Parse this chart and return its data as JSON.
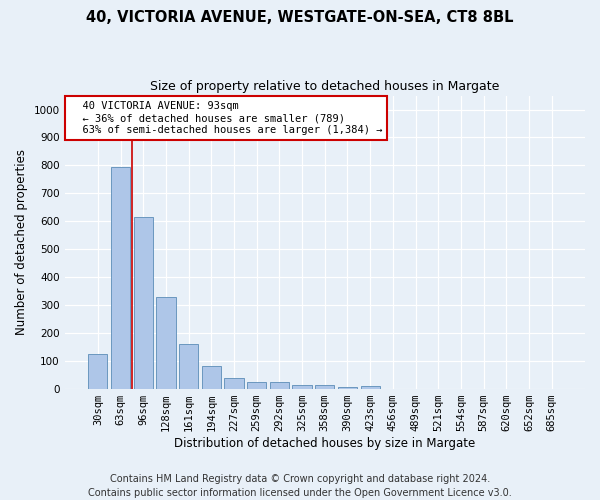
{
  "title_line1": "40, VICTORIA AVENUE, WESTGATE-ON-SEA, CT8 8BL",
  "title_line2": "Size of property relative to detached houses in Margate",
  "xlabel": "Distribution of detached houses by size in Margate",
  "ylabel": "Number of detached properties",
  "bar_color": "#aec6e8",
  "bar_edge_color": "#5b8db8",
  "categories": [
    "30sqm",
    "63sqm",
    "96sqm",
    "128sqm",
    "161sqm",
    "194sqm",
    "227sqm",
    "259sqm",
    "292sqm",
    "325sqm",
    "358sqm",
    "390sqm",
    "423sqm",
    "456sqm",
    "489sqm",
    "521sqm",
    "554sqm",
    "587sqm",
    "620sqm",
    "652sqm",
    "685sqm"
  ],
  "values": [
    125,
    795,
    615,
    328,
    162,
    82,
    40,
    27,
    24,
    15,
    15,
    8,
    10,
    0,
    0,
    0,
    0,
    0,
    0,
    0,
    0
  ],
  "annotation_text": "  40 VICTORIA AVENUE: 93sqm\n  ← 36% of detached houses are smaller (789)\n  63% of semi-detached houses are larger (1,384) →",
  "vline_x": 1.5,
  "ylim": [
    0,
    1050
  ],
  "yticks": [
    0,
    100,
    200,
    300,
    400,
    500,
    600,
    700,
    800,
    900,
    1000
  ],
  "footnote": "Contains HM Land Registry data © Crown copyright and database right 2024.\nContains public sector information licensed under the Open Government Licence v3.0.",
  "background_color": "#e8f0f8",
  "plot_bg_color": "#e8f0f8",
  "grid_color": "#ffffff",
  "vline_color": "#cc0000",
  "annotation_fontsize": 7.5,
  "title1_fontsize": 10.5,
  "title2_fontsize": 9,
  "xlabel_fontsize": 8.5,
  "ylabel_fontsize": 8.5,
  "tick_fontsize": 7.5,
  "footnote_fontsize": 7
}
